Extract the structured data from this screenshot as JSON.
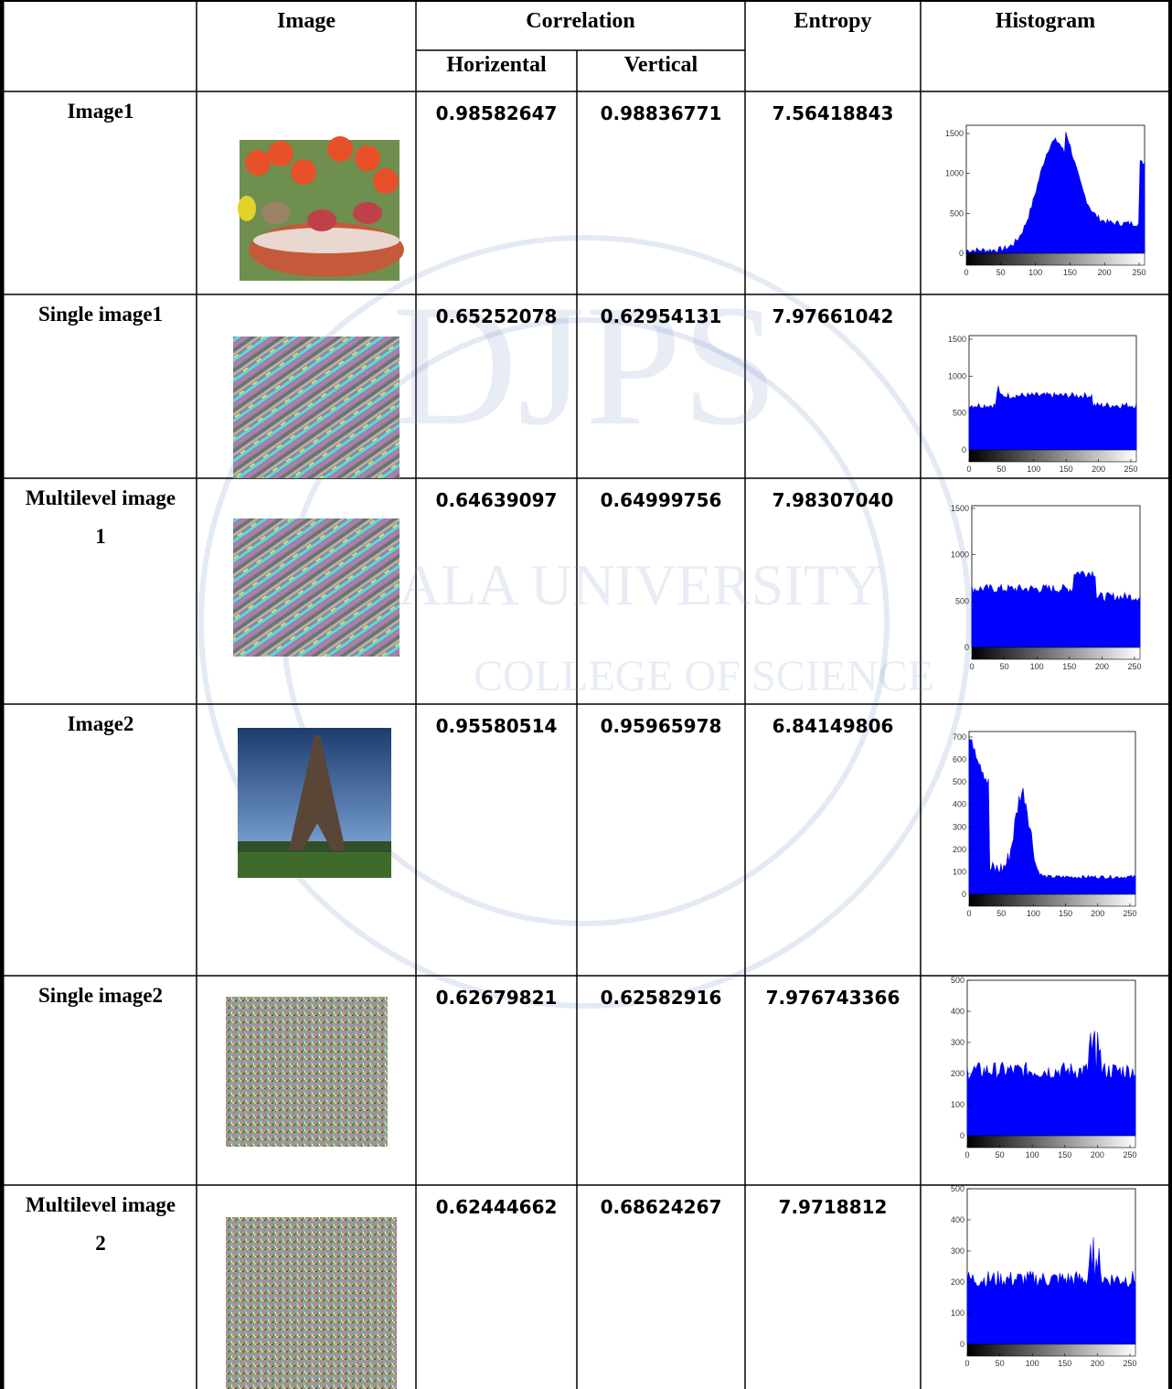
{
  "header": {
    "image": "Image",
    "correlation": "Correlation",
    "horizontal": "Horizental",
    "vertical": "Vertical",
    "entropy": "Entropy",
    "histogram": "Histogram"
  },
  "table": {
    "rows": [
      {
        "label": "Image1",
        "horizontal": "0.98582647",
        "vertical": "0.98836771",
        "entropy": "7.56418843",
        "histogram": {
          "xticks": [
            0,
            50,
            100,
            150,
            200,
            250
          ],
          "yticks": [
            0,
            500,
            1000,
            1500
          ]
        }
      },
      {
        "label": "Single image1",
        "horizontal": "0.65252078",
        "vertical": "0.62954131",
        "entropy": "7.97661042",
        "histogram": {
          "xticks": [
            0,
            50,
            100,
            150,
            200,
            250
          ],
          "yticks": [
            0,
            500,
            1000,
            1500
          ]
        }
      },
      {
        "label": "Multilevel image 1",
        "horizontal": "0.64639097",
        "vertical": "0.64999756",
        "entropy": "7.98307040",
        "histogram": {
          "xticks": [
            0,
            50,
            100,
            150,
            200,
            250
          ],
          "yticks": [
            0,
            500,
            1000,
            1500
          ]
        }
      },
      {
        "label": "Image2",
        "horizontal": "0.95580514",
        "vertical": "0.95965978",
        "entropy": "6.84149806",
        "histogram": {
          "xticks": [
            0,
            50,
            100,
            150,
            200,
            250
          ],
          "yticks": [
            0,
            100,
            200,
            300,
            400,
            500,
            600,
            700
          ]
        }
      },
      {
        "label": "Single image2",
        "horizontal": "0.62679821",
        "vertical": "0.62582916",
        "entropy": "7.976743366",
        "histogram": {
          "xticks": [
            0,
            50,
            100,
            150,
            200,
            250
          ],
          "yticks": [
            0,
            100,
            200,
            300,
            400,
            500
          ]
        }
      },
      {
        "label": "Multilevel image 2",
        "horizontal": "0.62444662",
        "vertical": "0.68624267",
        "entropy": "7.9718812",
        "histogram": {
          "xticks": [
            0,
            50,
            100,
            150,
            200,
            250
          ],
          "yticks": [
            0,
            100,
            200,
            300,
            400,
            500
          ]
        }
      }
    ]
  },
  "watermark": {
    "lines": [
      "DJPS",
      "ALA UNIVERSITY",
      "COLLEGE OF SCIENCE"
    ]
  }
}
